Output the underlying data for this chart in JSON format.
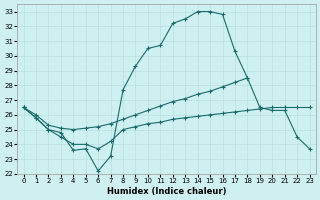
{
  "xlabel": "Humidex (Indice chaleur)",
  "bg_color": "#cff0f0",
  "grid_color": "#b8e0e0",
  "line_color": "#1a6b6b",
  "ylim": [
    22,
    33.5
  ],
  "xlim": [
    -0.5,
    23.5
  ],
  "yticks": [
    22,
    23,
    24,
    25,
    26,
    27,
    28,
    29,
    30,
    31,
    32,
    33
  ],
  "xticks": [
    0,
    1,
    2,
    3,
    4,
    5,
    6,
    7,
    8,
    9,
    10,
    11,
    12,
    13,
    14,
    15,
    16,
    17,
    18,
    19,
    20,
    21,
    22,
    23
  ],
  "line1_x": [
    0,
    1,
    2,
    3,
    4,
    5,
    6,
    7,
    8,
    9,
    10,
    11,
    12,
    13,
    14,
    15,
    16,
    17,
    18
  ],
  "line1_y": [
    26.5,
    25.8,
    25.0,
    24.8,
    23.6,
    23.7,
    22.2,
    23.2,
    27.7,
    29.3,
    30.5,
    30.7,
    32.2,
    32.5,
    33.0,
    33.0,
    32.8,
    30.3,
    28.5
  ],
  "line2_x": [
    0,
    1,
    2,
    3,
    4,
    5,
    6,
    7,
    8,
    9,
    10,
    11,
    12,
    13,
    14,
    15,
    16,
    17,
    18,
    19,
    20,
    21,
    22,
    23
  ],
  "line2_y": [
    26.5,
    26.0,
    25.3,
    25.1,
    25.0,
    25.1,
    25.2,
    25.4,
    25.7,
    26.0,
    26.3,
    26.6,
    26.9,
    27.1,
    27.4,
    27.6,
    27.9,
    28.2,
    28.5,
    26.5,
    26.3,
    26.3,
    24.5,
    23.7
  ],
  "line3_x": [
    0,
    1,
    2,
    3,
    4,
    5,
    6,
    7,
    8,
    9,
    10,
    11,
    12,
    13,
    14,
    15,
    16,
    17,
    18,
    19,
    20,
    21,
    22,
    23
  ],
  "line3_y": [
    26.5,
    25.8,
    25.0,
    24.5,
    24.0,
    24.0,
    23.7,
    24.2,
    25.0,
    25.2,
    25.4,
    25.5,
    25.7,
    25.8,
    25.9,
    26.0,
    26.1,
    26.2,
    26.3,
    26.4,
    26.5,
    26.5,
    26.5,
    26.5
  ]
}
